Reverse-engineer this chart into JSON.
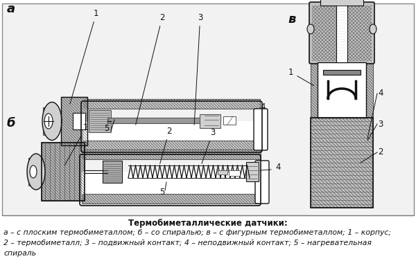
{
  "bg_color": "#f0f0f0",
  "white": "#ffffff",
  "dark": "#1a1a1a",
  "mid_gray": "#888888",
  "light_gray": "#cccccc",
  "hatch_gray": "#aaaaaa",
  "caption_bold": "Термобиметаллические датчики:",
  "caption_line1": "а – с плоским термобиметаллом; б – со спиралью; в – с фигурным термобиметаллом; 1 – корпус;",
  "caption_line2": "2 – термобиметалл; 3 – подвижный контакт; 4 – неподвижный контакт; 5 – нагревательная",
  "caption_line3": "спираль",
  "label_a": "а",
  "label_b": "б",
  "label_v": "в",
  "fig_width": 6.0,
  "fig_height": 4.03,
  "dpi": 100
}
